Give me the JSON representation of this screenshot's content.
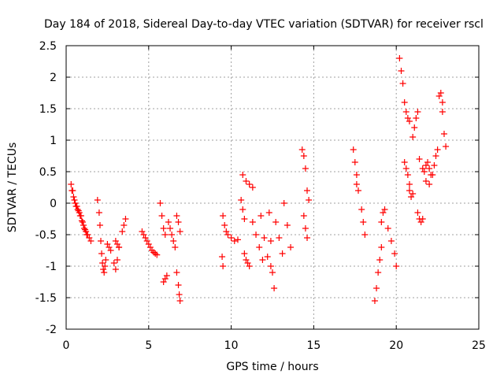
{
  "chart_data": {
    "type": "scatter",
    "title": "Day 184 of 2018, Sidereal Day-to-day VTEC variation (SDTVAR) for receiver rscl",
    "xlabel": "GPS time / hours",
    "ylabel": "SDTVAR / TECUs",
    "xlim": [
      0,
      25
    ],
    "ylim": [
      -2,
      2.5
    ],
    "xticks": [
      "0",
      "5",
      "10",
      "15",
      "20",
      "25"
    ],
    "yticks": [
      "-2",
      "-1.5",
      "-1",
      "-0.5",
      "0",
      "0.5",
      "1",
      "1.5",
      "2",
      "2.5"
    ],
    "grid": true,
    "marker": "+",
    "color": "#ff0000",
    "series": [
      {
        "name": "seg01",
        "x": [
          0.3,
          0.4,
          0.5,
          0.6,
          0.7,
          0.8,
          0.9,
          1.0,
          1.1,
          1.2,
          1.3,
          1.4,
          1.5
        ],
        "y": [
          0.3,
          0.2,
          0.05,
          -0.05,
          -0.1,
          -0.15,
          -0.2,
          -0.3,
          -0.4,
          -0.45,
          -0.5,
          -0.55,
          -0.6
        ]
      },
      {
        "name": "seg02",
        "x": [
          0.35,
          0.45,
          0.55,
          0.65,
          0.75,
          0.85,
          0.95,
          1.05,
          1.15,
          1.25
        ],
        "y": [
          0.2,
          0.1,
          0.0,
          -0.05,
          -0.12,
          -0.2,
          -0.28,
          -0.35,
          -0.42,
          -0.5
        ]
      },
      {
        "name": "seg03",
        "x": [
          1.9,
          2.0,
          2.05,
          2.1,
          2.15,
          2.2,
          2.25,
          2.3,
          2.35,
          2.4
        ],
        "y": [
          0.05,
          -0.15,
          -0.35,
          -0.6,
          -0.8,
          -0.95,
          -1.05,
          -1.1,
          -1.0,
          -0.9
        ]
      },
      {
        "name": "seg04",
        "x": [
          2.5,
          2.6,
          2.7
        ],
        "y": [
          -0.65,
          -0.7,
          -0.75
        ]
      },
      {
        "name": "seg05",
        "x": [
          2.9,
          3.0,
          3.1,
          3.2
        ],
        "y": [
          -0.95,
          -1.05,
          -0.9,
          -0.7
        ]
      },
      {
        "name": "seg06",
        "x": [
          3.0,
          3.1,
          3.2
        ],
        "y": [
          -0.6,
          -0.65,
          -0.7
        ]
      },
      {
        "name": "seg07",
        "x": [
          3.4,
          3.5,
          3.6
        ],
        "y": [
          -0.45,
          -0.35,
          -0.25
        ]
      },
      {
        "name": "seg08",
        "x": [
          4.6,
          4.7,
          4.8,
          4.9,
          5.0,
          5.1,
          5.2,
          5.3,
          5.4,
          5.5
        ],
        "y": [
          -0.45,
          -0.5,
          -0.55,
          -0.6,
          -0.65,
          -0.7,
          -0.75,
          -0.78,
          -0.8,
          -0.82
        ]
      },
      {
        "name": "seg09",
        "x": [
          5.7,
          5.8,
          5.9,
          6.0
        ],
        "y": [
          0.0,
          -0.2,
          -0.4,
          -0.5
        ]
      },
      {
        "name": "seg10",
        "x": [
          5.9,
          6.0,
          6.1
        ],
        "y": [
          -1.25,
          -1.2,
          -1.15
        ]
      },
      {
        "name": "seg11",
        "x": [
          6.2,
          6.3,
          6.4,
          6.5,
          6.6
        ],
        "y": [
          -0.3,
          -0.4,
          -0.5,
          -0.6,
          -0.7
        ]
      },
      {
        "name": "seg12",
        "x": [
          6.7,
          6.8,
          6.9
        ],
        "y": [
          -0.2,
          -0.3,
          -0.45
        ]
      },
      {
        "name": "seg13",
        "x": [
          6.7,
          6.8,
          6.85,
          6.9
        ],
        "y": [
          -1.1,
          -1.3,
          -1.45,
          -1.55
        ]
      },
      {
        "name": "seg14",
        "x": [
          9.5,
          9.6,
          9.7,
          9.8
        ],
        "y": [
          -0.2,
          -0.35,
          -0.45,
          -0.5
        ]
      },
      {
        "name": "seg15",
        "x": [
          9.45,
          9.5
        ],
        "y": [
          -0.85,
          -1.0
        ]
      },
      {
        "name": "seg16",
        "x": [
          10.0,
          10.2,
          10.4
        ],
        "y": [
          -0.55,
          -0.6,
          -0.58
        ]
      },
      {
        "name": "seg17",
        "x": [
          10.7,
          10.9,
          11.1,
          11.3
        ],
        "y": [
          0.45,
          0.35,
          0.3,
          0.25
        ]
      },
      {
        "name": "seg18",
        "x": [
          10.6,
          10.7,
          10.8
        ],
        "y": [
          0.05,
          -0.1,
          -0.25
        ]
      },
      {
        "name": "seg19",
        "x": [
          10.8,
          10.9,
          11.0,
          11.1
        ],
        "y": [
          -0.8,
          -0.9,
          -0.95,
          -1.0
        ]
      },
      {
        "name": "seg20",
        "x": [
          11.3,
          11.5,
          11.7,
          11.9
        ],
        "y": [
          -0.3,
          -0.5,
          -0.7,
          -0.9
        ]
      },
      {
        "name": "seg21",
        "x": [
          11.8,
          12.0,
          12.2,
          12.4
        ],
        "y": [
          -0.2,
          -0.55,
          -0.85,
          -1.0
        ]
      },
      {
        "name": "seg22",
        "x": [
          12.3,
          12.4,
          12.5,
          12.6
        ],
        "y": [
          -0.15,
          -0.6,
          -1.1,
          -1.35
        ]
      },
      {
        "name": "seg23",
        "x": [
          12.7,
          12.9,
          13.1
        ],
        "y": [
          -0.3,
          -0.55,
          -0.8
        ]
      },
      {
        "name": "seg24",
        "x": [
          13.2,
          13.4,
          13.6
        ],
        "y": [
          0.0,
          -0.35,
          -0.7
        ]
      },
      {
        "name": "seg25",
        "x": [
          14.3,
          14.4,
          14.5
        ],
        "y": [
          0.85,
          0.75,
          0.55
        ]
      },
      {
        "name": "seg26",
        "x": [
          14.4,
          14.5,
          14.6
        ],
        "y": [
          -0.2,
          -0.4,
          -0.55
        ]
      },
      {
        "name": "seg27",
        "x": [
          14.6,
          14.7
        ],
        "y": [
          0.2,
          0.05
        ]
      },
      {
        "name": "seg28",
        "x": [
          17.4,
          17.5,
          17.6
        ],
        "y": [
          0.85,
          0.65,
          0.45
        ]
      },
      {
        "name": "seg29",
        "x": [
          17.6,
          17.7
        ],
        "y": [
          0.3,
          0.2
        ]
      },
      {
        "name": "seg30",
        "x": [
          17.9,
          18.0,
          18.1
        ],
        "y": [
          -0.1,
          -0.3,
          -0.5
        ]
      },
      {
        "name": "seg31",
        "x": [
          18.7,
          18.8,
          18.9,
          19.0,
          19.1
        ],
        "y": [
          -1.55,
          -1.35,
          -1.1,
          -0.9,
          -0.7
        ]
      },
      {
        "name": "seg32",
        "x": [
          19.1,
          19.2,
          19.3
        ],
        "y": [
          -0.3,
          -0.15,
          -0.1
        ]
      },
      {
        "name": "seg33",
        "x": [
          19.5,
          19.7,
          19.9,
          20.0
        ],
        "y": [
          -0.4,
          -0.6,
          -0.8,
          -1.0
        ]
      },
      {
        "name": "seg34",
        "x": [
          20.2,
          20.3,
          20.4,
          20.5,
          20.6,
          20.7,
          20.8
        ],
        "y": [
          2.3,
          2.1,
          1.9,
          1.6,
          1.45,
          1.35,
          1.3
        ]
      },
      {
        "name": "seg35",
        "x": [
          20.5,
          20.6,
          20.7,
          20.8
        ],
        "y": [
          0.65,
          0.55,
          0.45,
          0.3
        ]
      },
      {
        "name": "seg36",
        "x": [
          20.8,
          20.9,
          21.0
        ],
        "y": [
          0.2,
          0.1,
          0.15
        ]
      },
      {
        "name": "seg37",
        "x": [
          21.0,
          21.1,
          21.2,
          21.3
        ],
        "y": [
          1.05,
          1.2,
          1.35,
          1.45
        ]
      },
      {
        "name": "seg38",
        "x": [
          21.3,
          21.4,
          21.5,
          21.6
        ],
        "y": [
          -0.15,
          -0.25,
          -0.3,
          -0.25
        ]
      },
      {
        "name": "seg39",
        "x": [
          21.4,
          21.6,
          21.8,
          22.0
        ],
        "y": [
          0.7,
          0.55,
          0.35,
          0.3
        ]
      },
      {
        "name": "seg40",
        "x": [
          21.7,
          21.8,
          21.9,
          22.0,
          22.1
        ],
        "y": [
          0.5,
          0.6,
          0.65,
          0.55,
          0.45
        ]
      },
      {
        "name": "seg41",
        "x": [
          22.2,
          22.3,
          22.4,
          22.5
        ],
        "y": [
          0.45,
          0.6,
          0.75,
          0.85
        ]
      },
      {
        "name": "seg42",
        "x": [
          22.6,
          22.7,
          22.8
        ],
        "y": [
          1.7,
          1.75,
          1.6
        ]
      },
      {
        "name": "seg43",
        "x": [
          22.8,
          22.9,
          23.0
        ],
        "y": [
          1.45,
          1.1,
          0.9
        ]
      }
    ]
  }
}
